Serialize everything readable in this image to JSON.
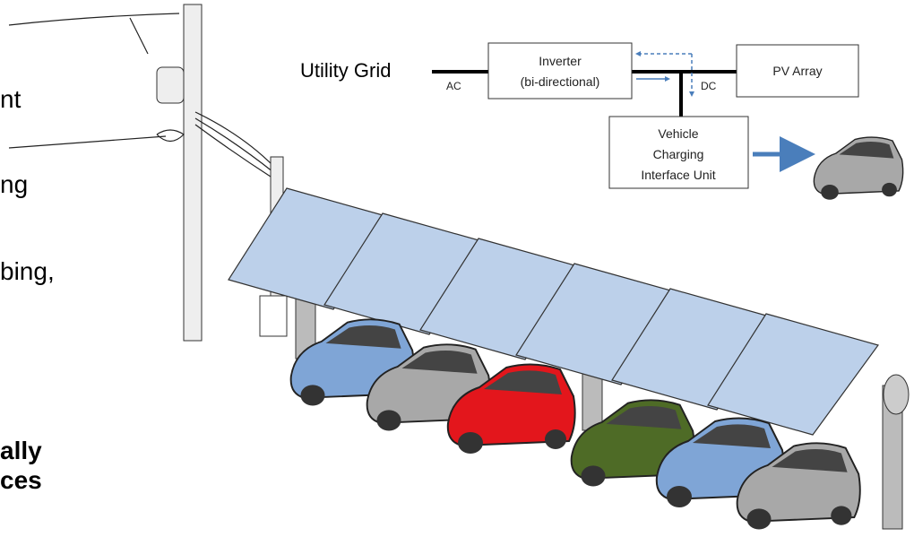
{
  "slide_text": {
    "line_1": "nt",
    "line_2": "ng",
    "line_3": "bing,",
    "line_4": "ally",
    "line_5": "ces"
  },
  "diagram": {
    "utility_grid": "Utility Grid",
    "ac_label": "AC",
    "dc_label": "DC",
    "nodes": [
      {
        "label_lines": [
          "Inverter",
          "(bi-directional)"
        ]
      },
      {
        "label_lines": [
          "PV Array"
        ]
      },
      {
        "label_lines": [
          "Vehicle",
          "Charging",
          "Interface Unit"
        ]
      }
    ]
  }
}
